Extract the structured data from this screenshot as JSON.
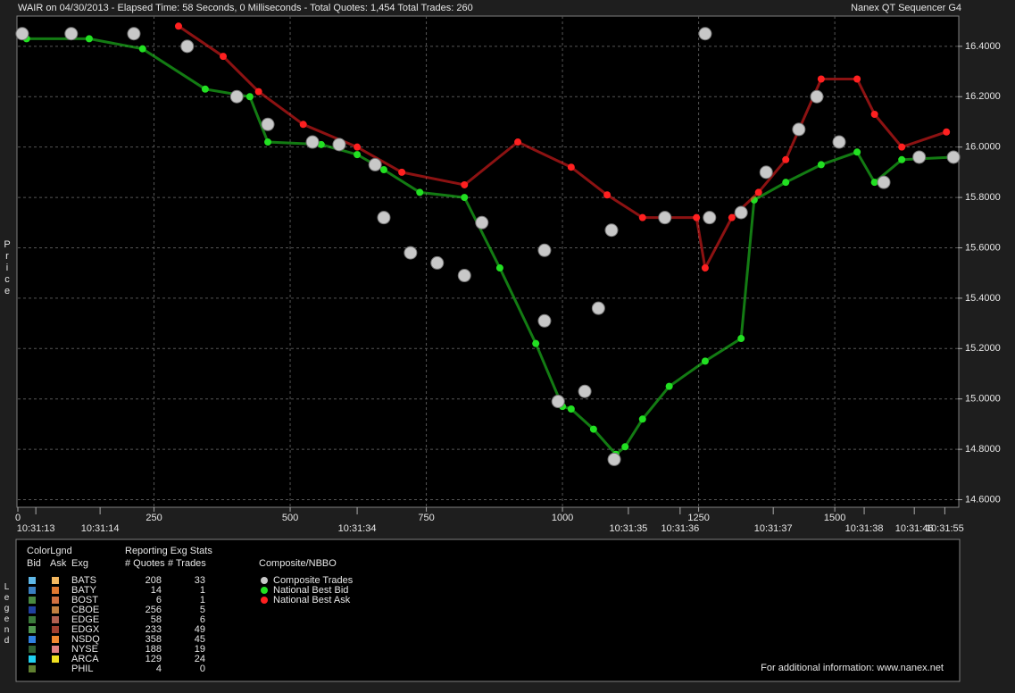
{
  "chart_data": {
    "type": "scatter",
    "title": "WAIR on 04/30/2013  -  Elapsed Time: 58 Seconds, 0 Milliseconds  -  Total Quotes: 1,454  Total Trades: 260",
    "title_right": "Nanex QT Sequencer G4",
    "y_label": "Price",
    "xlim": [
      0,
      1726
    ],
    "ylim": [
      14.57,
      16.52
    ],
    "xticks": [
      0,
      250,
      500,
      750,
      1000,
      1250,
      1500
    ],
    "yticks": [
      {
        "value": 14.6,
        "label": "14.6000"
      },
      {
        "value": 14.8,
        "label": "14.8000"
      },
      {
        "value": 15.0,
        "label": "15.0000"
      },
      {
        "value": 15.2,
        "label": "15.2000"
      },
      {
        "value": 15.4,
        "label": "15.4000"
      },
      {
        "value": 15.6,
        "label": "15.6000"
      },
      {
        "value": 15.8,
        "label": "15.8000"
      },
      {
        "value": 16.0,
        "label": "16.0000"
      },
      {
        "value": 16.2,
        "label": "16.2000"
      },
      {
        "value": 16.4,
        "label": "16.4000"
      }
    ],
    "time_ticks": [
      {
        "value": 33,
        "label": "10:31:13"
      },
      {
        "value": 151,
        "label": "10:31:14"
      },
      {
        "value": 623,
        "label": "10:31:34"
      },
      {
        "value": 1121,
        "label": "10:31:35"
      },
      {
        "value": 1216,
        "label": "10:31:36"
      },
      {
        "value": 1387,
        "label": "10:31:37"
      },
      {
        "value": 1554,
        "label": "10:31:38"
      },
      {
        "value": 1646,
        "label": "10:31:46"
      },
      {
        "value": 1702,
        "label": "10:31:55"
      }
    ],
    "grid": true,
    "series": [
      {
        "name": "Composite Trades",
        "color": "#c8c8c8",
        "x": [
          8,
          98,
          213,
          311,
          402,
          459,
          541,
          590,
          656,
          672,
          721,
          770,
          820,
          852,
          967,
          967,
          992,
          1041,
          1066,
          1090,
          1095,
          1188,
          1262,
          1270,
          1328,
          1374,
          1434,
          1467,
          1508,
          1590,
          1655,
          1718
        ],
        "values": [
          16.45,
          16.45,
          16.45,
          16.4,
          16.2,
          16.09,
          16.02,
          16.01,
          15.93,
          15.72,
          15.58,
          15.54,
          15.49,
          15.7,
          15.59,
          15.31,
          14.99,
          15.03,
          15.36,
          15.67,
          14.76,
          15.72,
          16.45,
          15.72,
          15.74,
          15.9,
          16.07,
          16.2,
          16.02,
          15.86,
          15.96,
          15.96
        ]
      },
      {
        "name": "National Best Bid",
        "color": "#22e022",
        "x": [
          16,
          131,
          229,
          344,
          426,
          459,
          557,
          623,
          672,
          738,
          820,
          885,
          951,
          1000,
          1016,
          1057,
          1098,
          1115,
          1147,
          1196,
          1262,
          1328,
          1352,
          1410,
          1475,
          1541,
          1573,
          1623,
          1721
        ],
        "values": [
          16.43,
          16.43,
          16.39,
          16.23,
          16.2,
          16.02,
          16.01,
          15.97,
          15.91,
          15.82,
          15.8,
          15.52,
          15.22,
          14.97,
          14.96,
          14.88,
          14.78,
          14.81,
          14.92,
          15.05,
          15.15,
          15.24,
          15.79,
          15.86,
          15.93,
          15.98,
          15.86,
          15.95,
          15.96
        ]
      },
      {
        "name": "National Best Ask",
        "color": "#ff2020",
        "x": [
          295,
          377,
          442,
          524,
          623,
          705,
          820,
          918,
          1016,
          1082,
          1147,
          1246,
          1262,
          1311,
          1360,
          1410,
          1475,
          1541,
          1573,
          1623,
          1705
        ],
        "values": [
          16.48,
          16.36,
          16.22,
          16.09,
          16.0,
          15.9,
          15.85,
          16.02,
          15.92,
          15.81,
          15.72,
          15.72,
          15.52,
          15.72,
          15.82,
          15.95,
          16.27,
          16.27,
          16.13,
          16.0,
          16.06
        ]
      }
    ]
  },
  "legend_panel": {
    "label": "Legend",
    "color_legend_title": "ColorLgnd",
    "headers": [
      "Bid",
      "Ask",
      "Exg"
    ],
    "stats_title": "Reporting Exg Stats",
    "stats_headers": [
      "# Quotes",
      "# Trades"
    ],
    "exchanges": [
      {
        "name": "BATS",
        "bid_color": "#5fb8e8",
        "ask_color": "#f4b860",
        "quotes": 208,
        "trades": 33
      },
      {
        "name": "BATY",
        "bid_color": "#3a7ec0",
        "ask_color": "#e07830",
        "quotes": 14,
        "trades": 1
      },
      {
        "name": "BOST",
        "bid_color": "#4a8a40",
        "ask_color": "#d07040",
        "quotes": 6,
        "trades": 1
      },
      {
        "name": "CBOE",
        "bid_color": "#2040a0",
        "ask_color": "#c08040",
        "quotes": 256,
        "trades": 5
      },
      {
        "name": "EDGE",
        "bid_color": "#3a7a3a",
        "ask_color": "#b06050",
        "quotes": 58,
        "trades": 6
      },
      {
        "name": "EDGX",
        "bid_color": "#509850",
        "ask_color": "#a04030",
        "quotes": 233,
        "trades": 49
      },
      {
        "name": "NSDQ",
        "bid_color": "#3080e0",
        "ask_color": "#f08830",
        "quotes": 358,
        "trades": 45
      },
      {
        "name": "NYSE",
        "bid_color": "#306030",
        "ask_color": "#e08080",
        "quotes": 188,
        "trades": 19
      },
      {
        "name": "ARCA",
        "bid_color": "#20d0f0",
        "ask_color": "#f0e020",
        "quotes": 129,
        "trades": 24
      },
      {
        "name": "PHIL",
        "bid_color": "#608030",
        "ask_color": null,
        "quotes": 4,
        "trades": 0
      }
    ],
    "composite_title": "Composite/NBBO",
    "footer": "For additional information: www.nanex.net"
  }
}
